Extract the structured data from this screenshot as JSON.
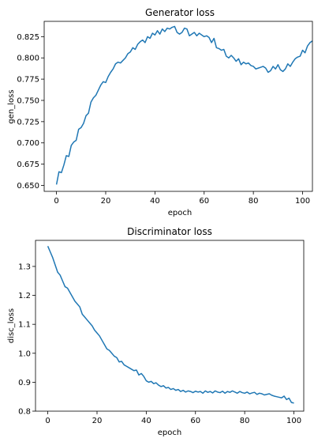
{
  "chart_data": [
    {
      "type": "line",
      "title": "Generator loss",
      "xlabel": "epoch",
      "ylabel": "gen_loss",
      "xlim": [
        -5,
        104
      ],
      "ylim": [
        0.643,
        0.843
      ],
      "xticks": [
        0,
        20,
        40,
        60,
        80,
        100
      ],
      "yticks": [
        0.65,
        0.675,
        0.7,
        0.725,
        0.75,
        0.775,
        0.8,
        0.825
      ],
      "ytick_labels": [
        "0.650",
        "0.675",
        "0.700",
        "0.725",
        "0.750",
        "0.775",
        "0.800",
        "0.825"
      ],
      "color": "#1f77b4",
      "series": [
        {
          "name": "gen_loss",
          "x_start": 0,
          "values": [
            0.651,
            0.666,
            0.665,
            0.674,
            0.685,
            0.684,
            0.697,
            0.701,
            0.703,
            0.716,
            0.718,
            0.723,
            0.732,
            0.735,
            0.748,
            0.753,
            0.756,
            0.762,
            0.768,
            0.772,
            0.771,
            0.778,
            0.783,
            0.787,
            0.793,
            0.795,
            0.794,
            0.797,
            0.8,
            0.805,
            0.807,
            0.812,
            0.81,
            0.816,
            0.819,
            0.821,
            0.818,
            0.825,
            0.823,
            0.829,
            0.827,
            0.832,
            0.828,
            0.834,
            0.831,
            0.835,
            0.834,
            0.836,
            0.837,
            0.83,
            0.828,
            0.83,
            0.835,
            0.834,
            0.826,
            0.828,
            0.83,
            0.826,
            0.829,
            0.827,
            0.825,
            0.826,
            0.824,
            0.818,
            0.823,
            0.812,
            0.811,
            0.809,
            0.81,
            0.802,
            0.8,
            0.803,
            0.8,
            0.796,
            0.799,
            0.792,
            0.795,
            0.793,
            0.794,
            0.791,
            0.79,
            0.787,
            0.788,
            0.789,
            0.79,
            0.788,
            0.783,
            0.785,
            0.79,
            0.787,
            0.792,
            0.786,
            0.784,
            0.787,
            0.793,
            0.79,
            0.795,
            0.799,
            0.801,
            0.802,
            0.809,
            0.806,
            0.814,
            0.818,
            0.82
          ]
        }
      ]
    },
    {
      "type": "line",
      "title": "Discriminator loss",
      "xlabel": "epoch",
      "ylabel": "disc_loss",
      "xlim": [
        -5,
        104
      ],
      "ylim": [
        0.8,
        1.39
      ],
      "xticks": [
        0,
        20,
        40,
        60,
        80,
        100
      ],
      "yticks": [
        0.8,
        0.9,
        1.0,
        1.1,
        1.2,
        1.3
      ],
      "ytick_labels": [
        "0.8",
        "0.9",
        "1.0",
        "1.1",
        "1.2",
        "1.3"
      ],
      "color": "#1f77b4",
      "series": [
        {
          "name": "disc_loss",
          "x_start": 0,
          "values": [
            1.37,
            1.35,
            1.33,
            1.305,
            1.28,
            1.27,
            1.25,
            1.23,
            1.225,
            1.21,
            1.195,
            1.18,
            1.17,
            1.16,
            1.135,
            1.125,
            1.115,
            1.105,
            1.095,
            1.08,
            1.07,
            1.06,
            1.045,
            1.03,
            1.015,
            1.01,
            1.0,
            0.99,
            0.985,
            0.97,
            0.972,
            0.96,
            0.955,
            0.95,
            0.945,
            0.94,
            0.942,
            0.925,
            0.93,
            0.92,
            0.905,
            0.9,
            0.903,
            0.895,
            0.898,
            0.89,
            0.885,
            0.888,
            0.88,
            0.882,
            0.875,
            0.878,
            0.872,
            0.875,
            0.868,
            0.872,
            0.866,
            0.87,
            0.868,
            0.864,
            0.869,
            0.866,
            0.868,
            0.862,
            0.87,
            0.865,
            0.868,
            0.863,
            0.87,
            0.866,
            0.864,
            0.869,
            0.862,
            0.868,
            0.865,
            0.87,
            0.866,
            0.862,
            0.868,
            0.864,
            0.862,
            0.866,
            0.86,
            0.863,
            0.865,
            0.858,
            0.862,
            0.86,
            0.856,
            0.858,
            0.86,
            0.855,
            0.852,
            0.85,
            0.848,
            0.846,
            0.852,
            0.84,
            0.845,
            0.83,
            0.828
          ]
        }
      ]
    }
  ]
}
